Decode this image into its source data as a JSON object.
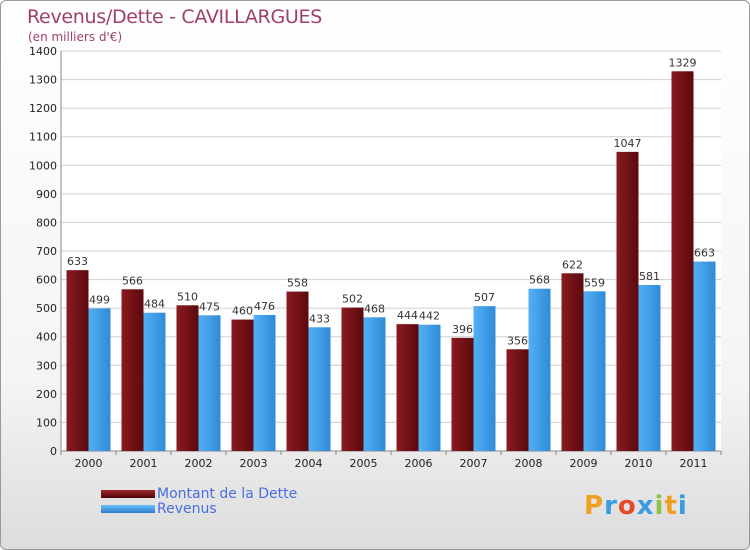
{
  "header": {
    "title": "Revenus/Dette - CAVILLARGUES",
    "subtitle": "(en milliers d'€)"
  },
  "chart_data": {
    "type": "bar",
    "categories": [
      "2000",
      "2001",
      "2002",
      "2003",
      "2004",
      "2005",
      "2006",
      "2007",
      "2008",
      "2009",
      "2010",
      "2011"
    ],
    "series": [
      {
        "name": "Montant de la Dette",
        "color": "#6e1014",
        "values": [
          633,
          566,
          510,
          460,
          558,
          502,
          444,
          396,
          356,
          622,
          1047,
          1329
        ]
      },
      {
        "name": "Revenus",
        "color": "#3a9be3",
        "values": [
          499,
          484,
          475,
          476,
          433,
          468,
          442,
          507,
          568,
          559,
          581,
          663
        ]
      }
    ],
    "yticks": [
      0,
      100,
      200,
      300,
      400,
      500,
      600,
      700,
      800,
      900,
      1000,
      1100,
      1200,
      1300,
      1400
    ],
    "ylim": [
      0,
      1400
    ],
    "grid": true,
    "legend_position": "bottom-left"
  },
  "logo": {
    "letters": [
      "P",
      "r",
      "o",
      "x",
      "i",
      "t",
      "i"
    ],
    "colors": [
      "#f0a020",
      "#3a9be3",
      "#e64a2e",
      "#3a9be3",
      "#8bc34a",
      "#f0a020",
      "#3a9be3"
    ]
  }
}
